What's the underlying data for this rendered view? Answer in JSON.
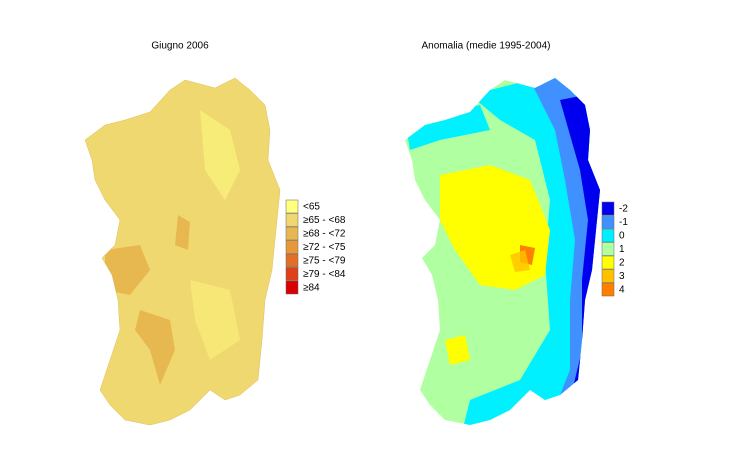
{
  "maps": [
    {
      "title": "Giugno 2006",
      "legend": [
        {
          "label": "<65",
          "color": "#ffff80"
        },
        {
          "label": "≥65 - <68",
          "color": "#f0d870"
        },
        {
          "label": "≥68 - <72",
          "color": "#e8b850"
        },
        {
          "label": "≥72 - <75",
          "color": "#e89838"
        },
        {
          "label": "≥75 - <79",
          "color": "#e07028"
        },
        {
          "label": "≥79 - <84",
          "color": "#e04018"
        },
        {
          "label": "≥84",
          "color": "#d80000"
        }
      ]
    },
    {
      "title": "Anomalia (medie 1995-2004)",
      "legend": [
        {
          "label": "-2",
          "color": "#0000ee"
        },
        {
          "label": "-1",
          "color": "#4090ff"
        },
        {
          "label": "0",
          "color": "#00f0ff"
        },
        {
          "label": "1",
          "color": "#b0ffa0"
        },
        {
          "label": "2",
          "color": "#ffff00"
        },
        {
          "label": "3",
          "color": "#ffc000"
        },
        {
          "label": "4",
          "color": "#ff8000"
        }
      ]
    }
  ]
}
